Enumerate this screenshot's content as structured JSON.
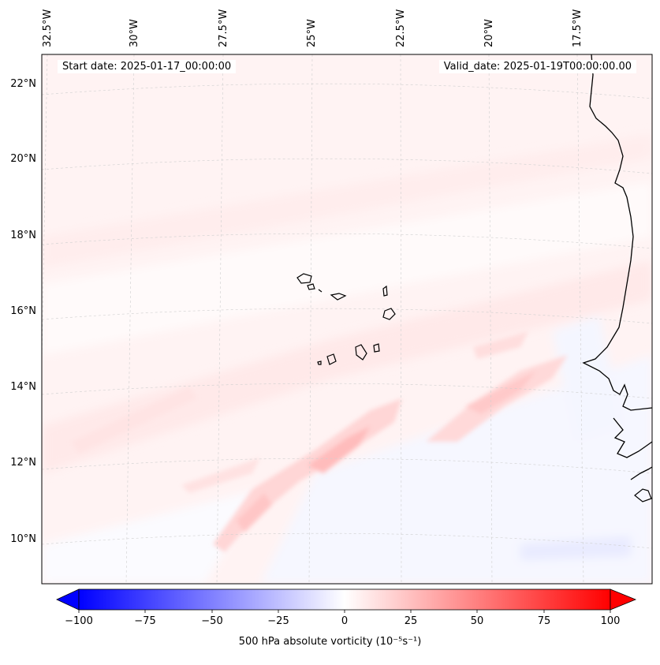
{
  "info": {
    "start_date": "Start date: 2025-01-17_00:00:00",
    "valid_date": "Valid_date: 2025-01-19T00:00:00.00"
  },
  "map": {
    "longitude_labels": [
      "32.5°W",
      "30°W",
      "27.5°W",
      "25°W",
      "22.5°W",
      "20°W",
      "17.5°W"
    ],
    "latitude_labels": [
      "22°N",
      "20°N",
      "18°N",
      "16°N",
      "14°N",
      "12°N",
      "10°N"
    ],
    "colors": {
      "ocean_base": "#fff4f4",
      "coastline": "#000000",
      "gridline": "#c8c8c8"
    }
  },
  "colorbar": {
    "label": "500 hPa absolute vorticity (10⁻⁵s⁻¹)",
    "ticks": [
      "−100",
      "−75",
      "−50",
      "−25",
      "0",
      "25",
      "50",
      "75",
      "100"
    ],
    "min": -100,
    "max": 100,
    "colormap": "bwr",
    "extend": "both"
  }
}
